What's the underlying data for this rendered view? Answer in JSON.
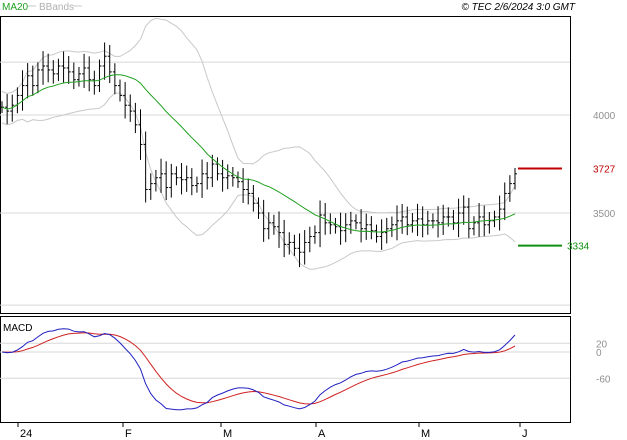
{
  "header": {
    "ma_label": "MA20",
    "bbands_label": "BBands",
    "copyright": "© TEC 2/6/2024 3:0 GMT"
  },
  "macd": {
    "label": "MACD"
  },
  "colors": {
    "price": "#000000",
    "ma": "#20a020",
    "bands": "#c8c8c8",
    "macd": "#2020c0",
    "signal": "#d02020",
    "resistance": "#c00000",
    "support": "#109010",
    "grid": "#d8d8d8",
    "axis": "#000000",
    "label": "#909090"
  },
  "chart_data": [
    {
      "type": "ohlc",
      "x_ticks": [
        "24",
        "F",
        "M",
        "A",
        "M",
        "J"
      ],
      "y_ticks": [
        {
          "value": 4000,
          "label": "4000"
        },
        {
          "value": 3500,
          "label": "3500"
        }
      ],
      "ylim": [
        2990,
        4500
      ],
      "levels": [
        {
          "name": "resistance",
          "value": 3727,
          "label": "3727"
        },
        {
          "name": "support",
          "value": 3334,
          "label": "3334"
        }
      ],
      "indicators": [
        "MA20",
        "BBands"
      ],
      "close_approx": [
        4040,
        4020,
        4050,
        4100,
        4150,
        4200,
        4150,
        4230,
        4250,
        4230,
        4210,
        4250,
        4240,
        4220,
        4180,
        4210,
        4240,
        4180,
        4150,
        4250,
        4300,
        4220,
        4150,
        4100,
        4050,
        4020,
        3950,
        3850,
        3620,
        3650,
        3680,
        3700,
        3630,
        3700,
        3680,
        3670,
        3680,
        3640,
        3650,
        3700,
        3680,
        3750,
        3700,
        3680,
        3690,
        3680,
        3660,
        3620,
        3600,
        3550,
        3500,
        3420,
        3450,
        3430,
        3400,
        3340,
        3350,
        3320,
        3300,
        3350,
        3380,
        3400,
        3490,
        3450,
        3440,
        3430,
        3410,
        3440,
        3460,
        3450,
        3420,
        3440,
        3410,
        3380,
        3400,
        3420,
        3440,
        3460,
        3480,
        3440,
        3460,
        3470,
        3440,
        3460,
        3460,
        3450,
        3480,
        3480,
        3450,
        3500,
        3530,
        3420,
        3450,
        3480,
        3440,
        3460,
        3480,
        3520,
        3600,
        3650,
        3700
      ]
    },
    {
      "type": "line",
      "title": "MACD",
      "y_ticks": [
        {
          "value": 20,
          "label": "20"
        },
        {
          "value": 0,
          "label": "0"
        },
        {
          "value": -60,
          "label": "-60"
        }
      ],
      "ylim": [
        -160,
        80
      ],
      "grid": true
    }
  ]
}
